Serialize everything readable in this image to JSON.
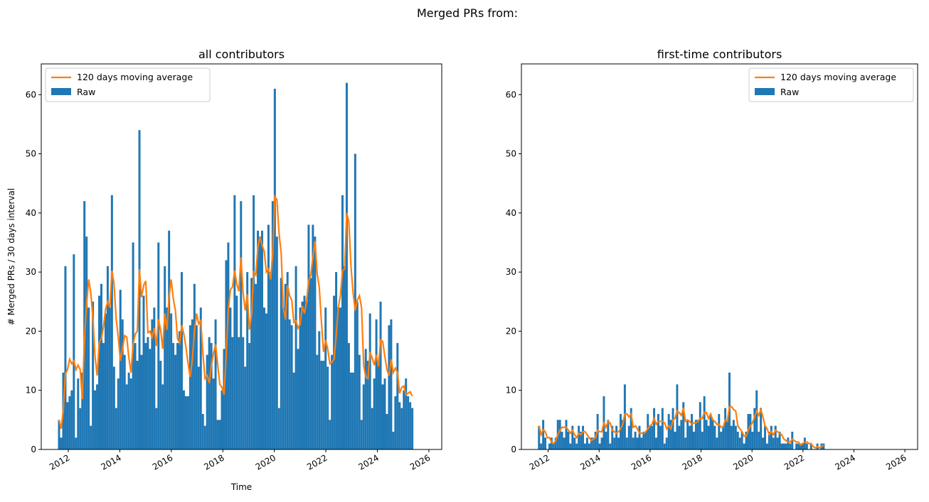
{
  "suptitle": "Merged PRs from:",
  "chart_data": [
    {
      "type": "bar",
      "title": "all contributors",
      "xlabel": "Time",
      "ylabel": "# Merged PRs / 30 days interval",
      "start_year": 2011.6,
      "bin_days": 30,
      "xlim": [
        2010.95,
        2026.5
      ],
      "ylim": [
        0,
        65.2
      ],
      "xticks": [
        "2012",
        "2014",
        "2016",
        "2018",
        "2020",
        "2022",
        "2024",
        "2026"
      ],
      "yticks": [
        "0",
        "10",
        "20",
        "30",
        "40",
        "50",
        "60"
      ],
      "legend": {
        "position": "upper left",
        "entries": [
          "120 days moving average",
          "Raw"
        ]
      },
      "colors": {
        "raw": "#1f77b4",
        "average": "#ff7f0e"
      },
      "moving_average_days": 120,
      "values": [
        5,
        2,
        13,
        31,
        8,
        9,
        10,
        33,
        2,
        12,
        7,
        13,
        42,
        36,
        24,
        4,
        25,
        10,
        11,
        26,
        28,
        18,
        23,
        31,
        24,
        43,
        14,
        7,
        12,
        27,
        22,
        16,
        11,
        13,
        12,
        35,
        18,
        15,
        54,
        16,
        26,
        18,
        19,
        17,
        22,
        24,
        7,
        35,
        15,
        11,
        31,
        24,
        37,
        23,
        18,
        16,
        18,
        20,
        30,
        10,
        9,
        9,
        21,
        22,
        28,
        21,
        14,
        24,
        6,
        4,
        16,
        19,
        18,
        12,
        22,
        5,
        5,
        10,
        17,
        32,
        35,
        24,
        19,
        43,
        26,
        19,
        42,
        19,
        14,
        30,
        18,
        29,
        43,
        28,
        37,
        36,
        37,
        24,
        23,
        38,
        30,
        42,
        61,
        36,
        7,
        29,
        24,
        28,
        30,
        22,
        21,
        13,
        31,
        17,
        24,
        25,
        26,
        25,
        38,
        29,
        38,
        36,
        16,
        20,
        15,
        15,
        24,
        14,
        5,
        16,
        26,
        30,
        24,
        24,
        43,
        31,
        62,
        18,
        13,
        13,
        50,
        25,
        16,
        5,
        11,
        17,
        15,
        23,
        7,
        12,
        22,
        15,
        25,
        11,
        12,
        6,
        21,
        22,
        3,
        9,
        18,
        8,
        7,
        10,
        12,
        9,
        8,
        7
      ]
    },
    {
      "type": "bar",
      "title": "first-time contributors",
      "xlabel": "",
      "ylabel": "",
      "start_year": 2011.6,
      "bin_days": 30,
      "xlim": [
        2010.95,
        2026.5
      ],
      "ylim": [
        0,
        65.2
      ],
      "xticks": [
        "2012",
        "2014",
        "2016",
        "2018",
        "2020",
        "2022",
        "2024",
        "2026"
      ],
      "yticks": [
        "0",
        "10",
        "20",
        "30",
        "40",
        "50",
        "60"
      ],
      "legend": {
        "position": "upper right",
        "entries": [
          "120 days moving average",
          "Raw"
        ]
      },
      "colors": {
        "raw": "#1f77b4",
        "average": "#ff7f0e"
      },
      "moving_average_days": 120,
      "values": [
        4,
        1,
        5,
        2,
        0,
        1,
        2,
        1,
        2,
        5,
        5,
        3,
        2,
        5,
        3,
        1,
        4,
        2,
        1,
        4,
        3,
        4,
        1,
        2,
        1,
        2,
        2,
        3,
        6,
        1,
        2,
        9,
        3,
        5,
        1,
        4,
        2,
        4,
        2,
        6,
        5,
        11,
        2,
        4,
        7,
        2,
        3,
        2,
        4,
        2,
        3,
        3,
        6,
        4,
        4,
        7,
        2,
        6,
        4,
        7,
        1,
        2,
        6,
        5,
        7,
        3,
        11,
        4,
        5,
        8,
        2,
        5,
        4,
        6,
        3,
        5,
        5,
        8,
        3,
        9,
        5,
        4,
        6,
        5,
        4,
        2,
        6,
        3,
        4,
        7,
        5,
        13,
        4,
        5,
        4,
        3,
        2,
        3,
        1,
        3,
        6,
        6,
        3,
        7,
        10,
        3,
        7,
        2,
        4,
        1,
        3,
        4,
        2,
        4,
        2,
        3,
        1,
        1,
        1,
        2,
        1,
        3,
        0,
        1,
        1,
        1,
        1,
        2,
        1,
        0,
        1,
        0,
        0,
        1,
        0,
        1,
        1
      ]
    }
  ]
}
